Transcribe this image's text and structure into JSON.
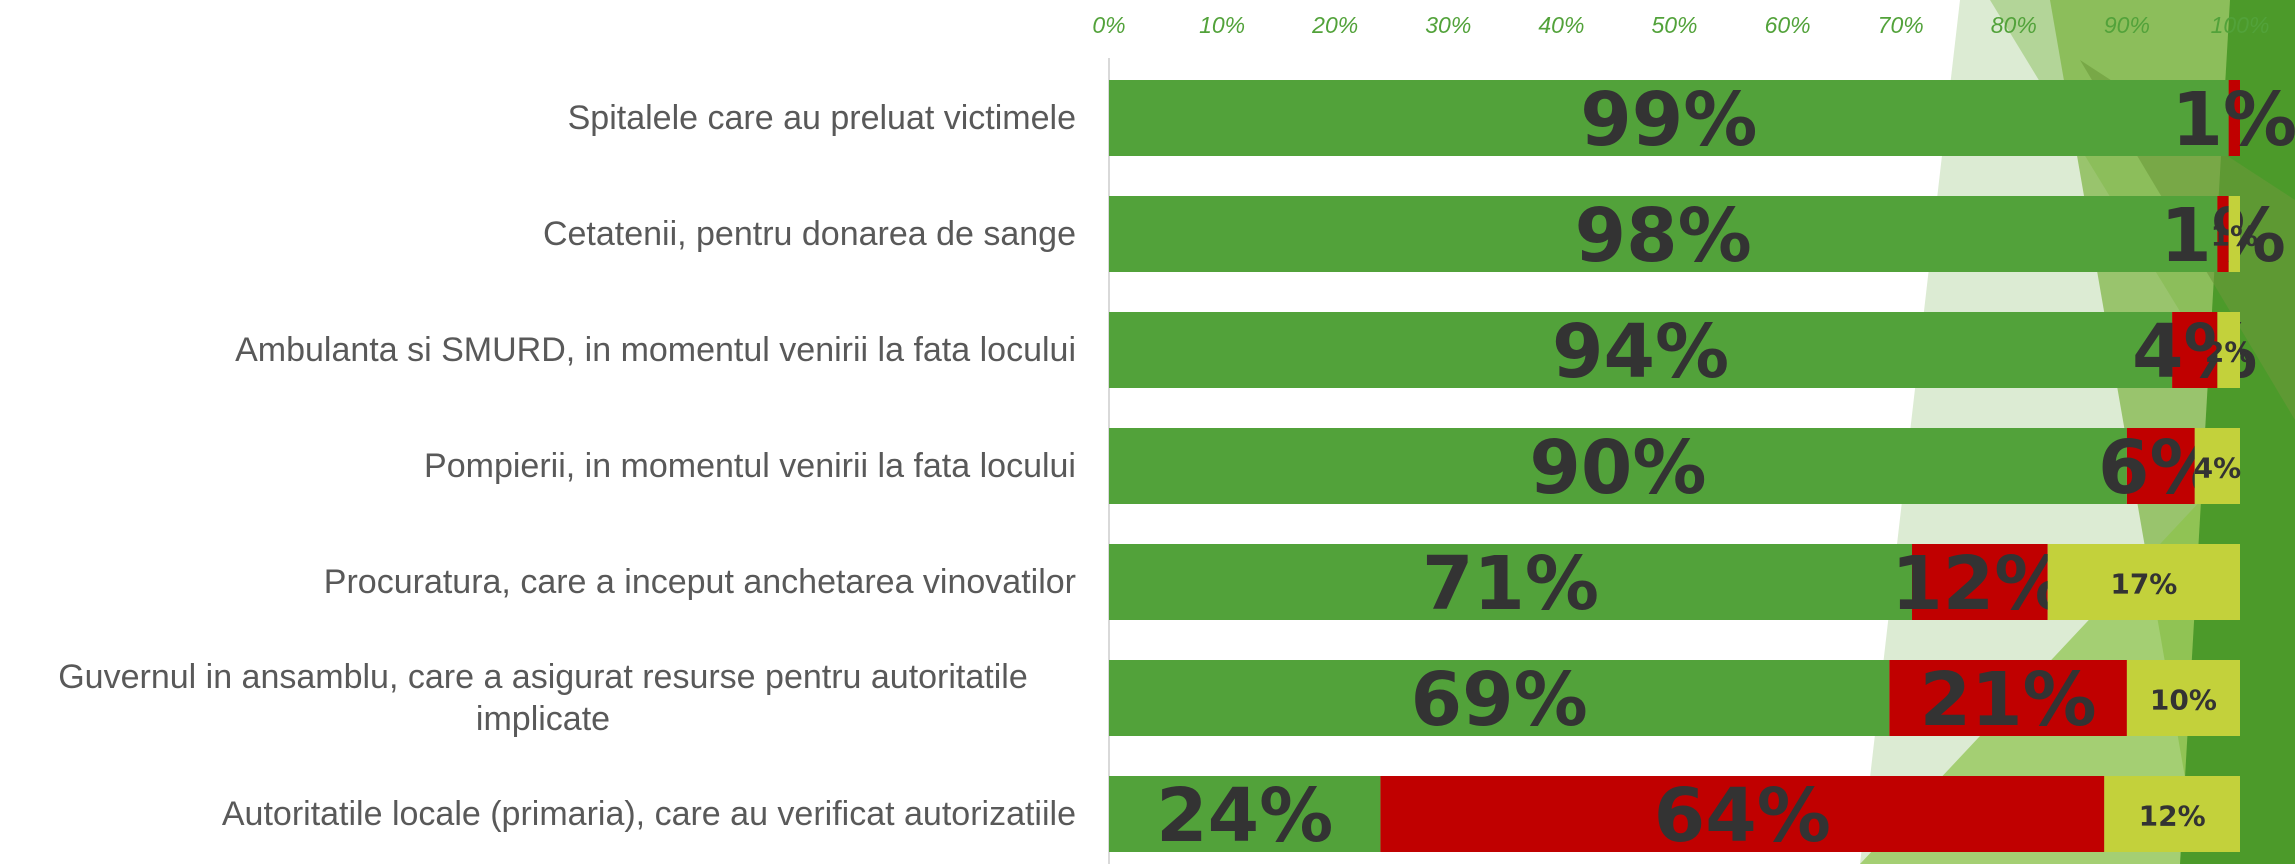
{
  "chart_data": {
    "type": "stacked-bar-horizontal",
    "categories": [
      "Spitalele care au preluat victimele",
      "Cetatenii, pentru donarea de sange",
      "Ambulanta si SMURD, in momentul venirii la fata locului",
      "Pompierii, in momentul venirii la fata locului",
      "Procuratura, care a inceput anchetarea vinovatilor",
      "Guvernul in ansamblu, care a asigurat resurse pentru autoritatile implicate",
      "Autoritatile locale (primaria), care au verificat autorizatiile"
    ],
    "series": [
      {
        "color": "#52a23a",
        "values": [
          99,
          98,
          94,
          90,
          71,
          69,
          24
        ],
        "value_labels": [
          "99%",
          "98%",
          "94%",
          "90%",
          "71%",
          "69%",
          "24%"
        ]
      },
      {
        "color": "#c00000",
        "values": [
          1,
          1,
          4,
          6,
          12,
          21,
          64
        ],
        "value_labels": [
          "1%",
          "1%",
          "4%",
          "6%",
          "12%",
          "21%",
          "64%"
        ]
      },
      {
        "color": "#c3d13b",
        "values": [
          null,
          1,
          2,
          4,
          17,
          10,
          12
        ],
        "value_labels": [
          null,
          "1%",
          "2%",
          "4%",
          "17%",
          "10%",
          "12%"
        ]
      }
    ],
    "xlim": [
      0,
      100
    ],
    "xticks": [
      {
        "value": 0,
        "label": "0%"
      },
      {
        "value": 10,
        "label": "10%"
      },
      {
        "value": 20,
        "label": "20%"
      },
      {
        "value": 30,
        "label": "30%"
      },
      {
        "value": 40,
        "label": "40%"
      },
      {
        "value": 50,
        "label": "50%"
      },
      {
        "value": 60,
        "label": "60%"
      },
      {
        "value": 70,
        "label": "70%"
      },
      {
        "value": 80,
        "label": "80%"
      },
      {
        "value": 90,
        "label": "90%"
      },
      {
        "value": 100,
        "label": "100%"
      }
    ]
  }
}
